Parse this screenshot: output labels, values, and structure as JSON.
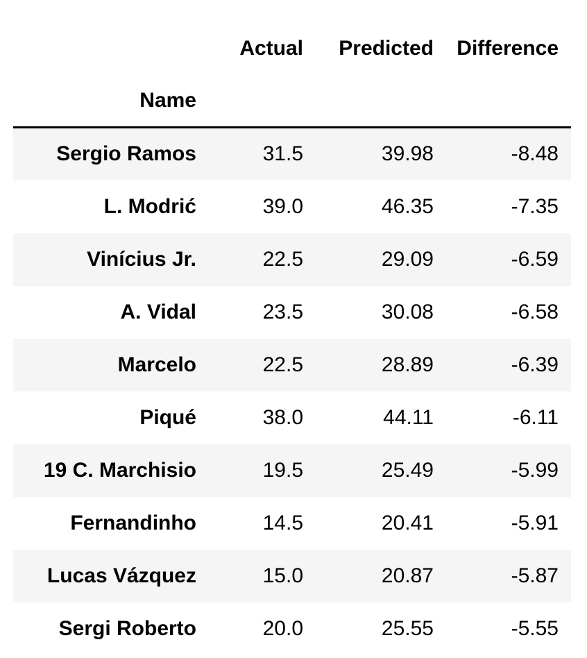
{
  "table": {
    "columns": [
      "Actual",
      "Predicted",
      "Difference"
    ],
    "index_name": "Name",
    "rows": [
      {
        "name": "Sergio Ramos",
        "actual": "31.5",
        "predicted": "39.98",
        "difference": "-8.48"
      },
      {
        "name": "L. Modrić",
        "actual": "39.0",
        "predicted": "46.35",
        "difference": "-7.35"
      },
      {
        "name": "Vinícius Jr.",
        "actual": "22.5",
        "predicted": "29.09",
        "difference": "-6.59"
      },
      {
        "name": "A. Vidal",
        "actual": "23.5",
        "predicted": "30.08",
        "difference": "-6.58"
      },
      {
        "name": "Marcelo",
        "actual": "22.5",
        "predicted": "28.89",
        "difference": "-6.39"
      },
      {
        "name": "Piqué",
        "actual": "38.0",
        "predicted": "44.11",
        "difference": "-6.11"
      },
      {
        "name": "19 C. Marchisio",
        "actual": "19.5",
        "predicted": "25.49",
        "difference": "-5.99"
      },
      {
        "name": "Fernandinho",
        "actual": "14.5",
        "predicted": "20.41",
        "difference": "-5.91"
      },
      {
        "name": "Lucas Vázquez",
        "actual": "15.0",
        "predicted": "20.87",
        "difference": "-5.87"
      },
      {
        "name": "Sergi Roberto",
        "actual": "20.0",
        "predicted": "25.55",
        "difference": "-5.55"
      }
    ]
  }
}
